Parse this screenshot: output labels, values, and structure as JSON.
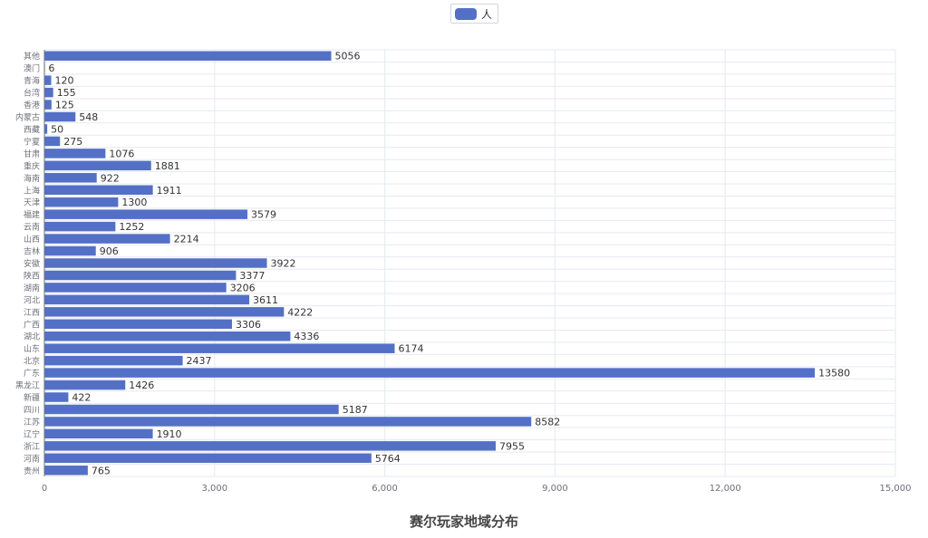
{
  "legend": {
    "label": "人",
    "color": "#5470c6"
  },
  "title": "赛尔玩家地域分布",
  "chart_data": {
    "type": "bar",
    "orientation": "horizontal",
    "title": "赛尔玩家地域分布",
    "xlabel": "",
    "ylabel": "",
    "xlim": [
      0,
      15000
    ],
    "x_ticks": [
      "0",
      "3,000",
      "6,000",
      "9,000",
      "12,000",
      "15,000"
    ],
    "grid": true,
    "legend_position": "top-center",
    "categories": [
      "其他",
      "澳门",
      "青海",
      "台湾",
      "香港",
      "内蒙古",
      "西藏",
      "宁夏",
      "甘肃",
      "重庆",
      "海南",
      "上海",
      "天津",
      "福建",
      "云南",
      "山西",
      "吉林",
      "安徽",
      "陕西",
      "湖南",
      "河北",
      "江西",
      "广西",
      "湖北",
      "山东",
      "北京",
      "广东",
      "黑龙江",
      "新疆",
      "四川",
      "江苏",
      "辽宁",
      "浙江",
      "河南",
      "贵州"
    ],
    "series": [
      {
        "name": "人",
        "values": [
          5056,
          6,
          120,
          155,
          125,
          548,
          50,
          275,
          1076,
          1881,
          922,
          1911,
          1300,
          3579,
          1252,
          2214,
          906,
          3922,
          3377,
          3206,
          3611,
          4222,
          3306,
          4336,
          6174,
          2437,
          13580,
          1426,
          422,
          5187,
          8582,
          1910,
          7955,
          5764,
          765
        ]
      }
    ],
    "bar_color": "#5470c6"
  }
}
